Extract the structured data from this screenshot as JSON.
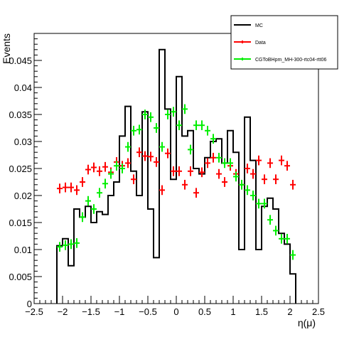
{
  "chart_data": {
    "type": "histogram",
    "title": "",
    "xlabel": "η(μ)",
    "ylabel": "Events",
    "xlim": [
      -2.5,
      2.5
    ],
    "ylim": [
      0,
      0.05
    ],
    "grid": false,
    "legend_position": "top-right",
    "x_ticks": [
      "−2.5",
      "−2",
      "−1.5",
      "−1",
      "−0.5",
      "0",
      "0.5",
      "1",
      "1.5",
      "2",
      "2.5"
    ],
    "x_tick_values": [
      -2.5,
      -2,
      -1.5,
      -1,
      -0.5,
      0,
      0.5,
      1,
      1.5,
      2,
      2.5
    ],
    "y_ticks": [
      "0",
      "0.005",
      "0.01",
      "0.015",
      "0.02",
      "0.025",
      "0.03",
      "0.035",
      "0.04",
      "0.045"
    ],
    "y_tick_values": [
      0,
      0.005,
      0.01,
      0.015,
      0.02,
      0.025,
      0.03,
      0.035,
      0.04,
      0.045
    ],
    "bin_width": 0.1,
    "bin_centers": [
      -2.05,
      -1.95,
      -1.85,
      -1.75,
      -1.65,
      -1.55,
      -1.45,
      -1.35,
      -1.25,
      -1.15,
      -1.05,
      -0.95,
      -0.85,
      -0.75,
      -0.65,
      -0.55,
      -0.45,
      -0.35,
      -0.25,
      -0.15,
      -0.05,
      0.05,
      0.15,
      0.25,
      0.35,
      0.45,
      0.55,
      0.65,
      0.75,
      0.85,
      0.95,
      1.05,
      1.15,
      1.25,
      1.35,
      1.45,
      1.55,
      1.65,
      1.75,
      1.85,
      1.95,
      2.05
    ],
    "series": [
      {
        "name": "MC",
        "style": "step",
        "color": "#000000",
        "values": [
          0.0107,
          0.012,
          0.007,
          0.0175,
          0.016,
          0.018,
          0.015,
          0.017,
          0.0165,
          0.02,
          0.0225,
          0.031,
          0.0365,
          0.0245,
          0.02,
          0.0355,
          0.0175,
          0.0085,
          0.047,
          0.036,
          0.023,
          0.042,
          0.031,
          0.032,
          0.025,
          0.024,
          0.027,
          0.03,
          0.0305,
          0.026,
          0.032,
          0.028,
          0.01,
          0.0345,
          0.0265,
          0.01,
          0.018,
          0.0195,
          0.0175,
          0.013,
          0.011,
          0.0055
        ]
      },
      {
        "name": "Data",
        "style": "points",
        "color": "#ff0000",
        "x": [
          -2.05,
          -1.95,
          -1.85,
          -1.75,
          -1.65,
          -1.55,
          -1.45,
          -1.35,
          -1.25,
          -1.15,
          -1.05,
          -0.95,
          -0.85,
          -0.75,
          -0.65,
          -0.55,
          -0.45,
          -0.35,
          -0.25,
          -0.15,
          -0.05,
          0.05,
          0.15,
          0.25,
          0.35,
          0.45,
          0.55,
          0.65,
          0.75,
          0.85,
          0.95,
          1.05,
          1.15,
          1.25,
          1.35,
          1.45,
          1.55,
          1.65,
          1.75,
          1.85,
          1.95,
          2.05
        ],
        "values": [
          0.0213,
          0.0215,
          0.0215,
          0.021,
          0.0225,
          0.0248,
          0.0252,
          0.0245,
          0.0253,
          0.0243,
          0.0262,
          0.0255,
          0.026,
          0.023,
          0.028,
          0.0273,
          0.0272,
          0.0262,
          0.021,
          0.0278,
          0.0245,
          0.0245,
          0.022,
          0.0245,
          0.0205,
          0.0243,
          0.026,
          0.027,
          0.024,
          0.0225,
          0.0255,
          0.024,
          0.022,
          0.025,
          0.024,
          0.0265,
          0.023,
          0.026,
          0.023,
          0.0265,
          0.0255,
          0.022
        ]
      },
      {
        "name": "CGToBHpm_MH-300-rtc04-rtt06",
        "style": "points",
        "color": "#00ee00",
        "x": [
          -2.05,
          -1.95,
          -1.85,
          -1.75,
          -1.65,
          -1.55,
          -1.45,
          -1.35,
          -1.25,
          -1.15,
          -1.05,
          -0.95,
          -0.85,
          -0.75,
          -0.65,
          -0.55,
          -0.45,
          -0.35,
          -0.25,
          -0.15,
          -0.05,
          0.05,
          0.15,
          0.25,
          0.35,
          0.45,
          0.55,
          0.65,
          0.75,
          0.85,
          0.95,
          1.05,
          1.15,
          1.25,
          1.35,
          1.45,
          1.55,
          1.65,
          1.75,
          1.85,
          1.95,
          2.05
        ],
        "values": [
          0.0105,
          0.0108,
          0.011,
          0.0112,
          0.016,
          0.019,
          0.0175,
          0.0205,
          0.0222,
          0.024,
          0.0255,
          0.025,
          0.029,
          0.032,
          0.0322,
          0.035,
          0.0345,
          0.0325,
          0.029,
          0.035,
          0.0355,
          0.033,
          0.036,
          0.0285,
          0.033,
          0.033,
          0.032,
          0.0305,
          0.027,
          0.026,
          0.026,
          0.0235,
          0.022,
          0.021,
          0.02,
          0.0185,
          0.0185,
          0.0155,
          0.0135,
          0.012,
          0.012,
          0.009
        ]
      }
    ]
  }
}
